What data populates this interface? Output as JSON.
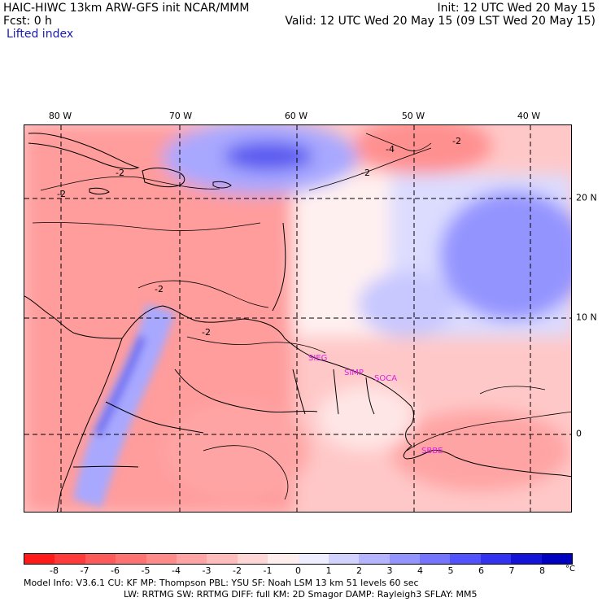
{
  "header": {
    "line1_left": "HAIC-HIWC 13km ARW-GFS init    NCAR/MMM",
    "line1_right": "Init: 12 UTC Wed 20 May 15",
    "line2_left": "Fcst:    0 h",
    "line2_right": "Valid: 12 UTC Wed 20 May 15 (09 LST Wed 20 May 15)",
    "line3": "Lifted index"
  },
  "map": {
    "lon_labels": [
      "80 W",
      "70 W",
      "60 W",
      "50 W",
      "40 W"
    ],
    "lat_labels": [
      "20 N",
      "10 N",
      "0"
    ],
    "contour_labels": [
      "-2",
      "-2",
      "-4",
      "-2",
      "-2",
      "-2",
      "-2"
    ],
    "station_labels": [
      "SIEG",
      "SIMP",
      "SOCA",
      "SBBE"
    ],
    "station_color": "#e020e0"
  },
  "colorbar": {
    "ticks": [
      "-8",
      "-7",
      "-6",
      "-5",
      "-4",
      "-3",
      "-2",
      "-1",
      "0",
      "1",
      "2",
      "3",
      "4",
      "5",
      "6",
      "7",
      "8"
    ],
    "unit": "°C",
    "colors": [
      "#ff1a1a",
      "#ff3a3a",
      "#ff5a5a",
      "#ff7272",
      "#ff8a8a",
      "#ffa4a4",
      "#ffbcbc",
      "#ffd6d6",
      "#ffeeee",
      "#eeeeff",
      "#d2d2ff",
      "#b4b4ff",
      "#9494ff",
      "#7474ff",
      "#5252ff",
      "#3232f0",
      "#1414d8",
      "#0000c0"
    ]
  },
  "info": {
    "line1": "Model Info: V3.6.1    CU: KF      MP: Thompson     PBL: YSU       SF: Noah LSM     13 km    51 levels   60 sec",
    "line2": "LW: RRTMG     SW: RRTMG   DIFF: full     KM: 2D Smagor DAMP: Rayleigh3    SFLAY: MM5"
  }
}
